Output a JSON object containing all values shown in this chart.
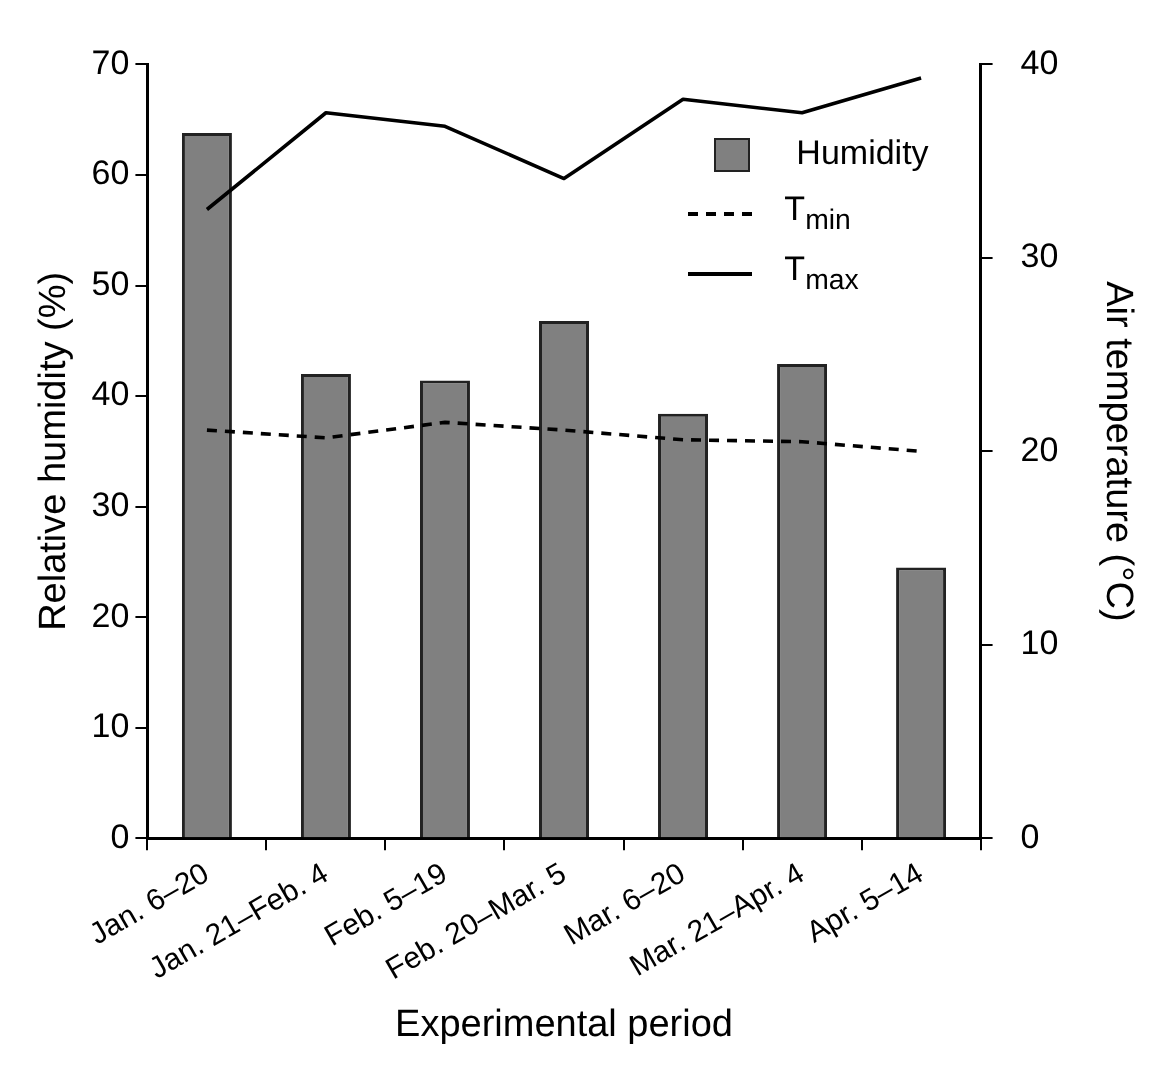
{
  "chart_data": {
    "type": "bar",
    "xlabel": "Experimental period",
    "ylabel": "Relative humidity (%)",
    "y2label": "Air temperature (°C)",
    "categories": [
      "Jan. 6–20",
      "Jan. 21–Feb. 4",
      "Feb. 5–19",
      "Feb. 20–Mar. 5",
      "Mar. 6–20",
      "Mar. 21–Apr. 4",
      "Apr. 5–14"
    ],
    "series": [
      {
        "name": "Humidity",
        "color": "#808080",
        "values": [
          63.8,
          42.0,
          41.4,
          46.8,
          38.4,
          42.9,
          24.5
        ]
      },
      {
        "name": "T$_{min}$",
        "type": "line",
        "axis": "y2",
        "line_style": "dashed",
        "color": "#000000",
        "values": [
          21.1,
          20.7,
          21.5,
          21.1,
          20.6,
          20.5,
          20.0
        ]
      },
      {
        "name": "T$_{max}$",
        "type": "line",
        "axis": "y2",
        "line_style": "solid",
        "color": "#000000",
        "values": [
          32.5,
          37.5,
          36.8,
          34.1,
          38.2,
          37.5,
          39.3
        ]
      }
    ],
    "ylim": [
      0,
      70
    ],
    "yticks": [
      0,
      10,
      20,
      30,
      40,
      50,
      60,
      70
    ],
    "y2lim": [
      0,
      40
    ],
    "y2ticks": [
      0,
      10,
      20,
      30,
      40
    ],
    "grid": false,
    "legend": "top right",
    "marker": "none"
  }
}
